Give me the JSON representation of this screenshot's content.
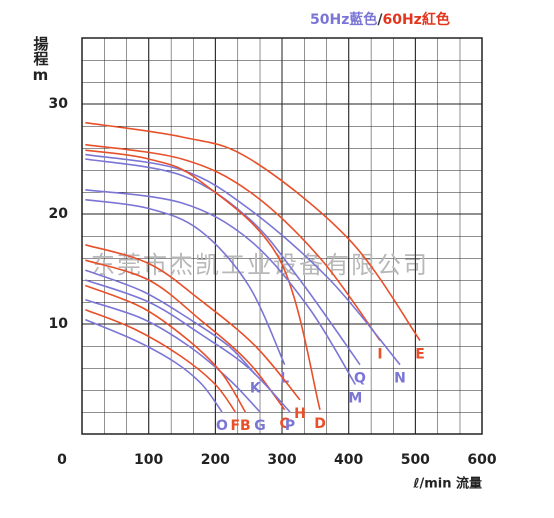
{
  "chart_data": {
    "type": "line",
    "legend_parts": [
      "50Hz藍色",
      "/",
      "60Hz紅色"
    ],
    "legend_colors": [
      "#7b76d6",
      "#333333",
      "#e2361e"
    ],
    "ylabel": "揚程m",
    "xlabel": "ℓ/min 流量",
    "watermark": "东莞市杰凯工业设备有限公司",
    "xlim": [
      0,
      600
    ],
    "ylim": [
      0,
      36
    ],
    "xticks": [
      0,
      100,
      200,
      300,
      400,
      500,
      600
    ],
    "yticks": [
      10,
      20,
      30
    ],
    "grid": true,
    "series": [
      {
        "name": "E",
        "color": "#e8502a",
        "x": [
          5,
          150,
          252,
          402,
          507
        ],
        "values": [
          28.3,
          27,
          25,
          17.6,
          8.5
        ]
      },
      {
        "name": "I",
        "color": "#e8502a",
        "x": [
          5,
          150,
          252,
          357,
          447
        ],
        "values": [
          26.3,
          25,
          22,
          16,
          8.5
        ]
      },
      {
        "name": "N",
        "color": "#7b76d6",
        "x": [
          5,
          150,
          252,
          372,
          477
        ],
        "values": [
          25.4,
          24,
          20.4,
          14,
          6.3
        ]
      },
      {
        "name": "Q",
        "color": "#7b76d6",
        "x": [
          5,
          150,
          252,
          327,
          417
        ],
        "values": [
          25,
          23.5,
          19.5,
          14,
          6.3
        ]
      },
      {
        "name": "D",
        "color": "#e8502a",
        "x": [
          5,
          100,
          177,
          297,
          357
        ],
        "values": [
          25.8,
          25,
          23,
          15.8,
          2.2
        ]
      },
      {
        "name": "M",
        "color": "#7b76d6",
        "x": [
          5,
          150,
          252,
          340,
          410
        ],
        "values": [
          22.2,
          21,
          17.6,
          11.5,
          4.5
        ]
      },
      {
        "name": "L",
        "color": "#7b76d6",
        "x": [
          5,
          100,
          177,
          250,
          304
        ],
        "values": [
          21.3,
          20.5,
          18.5,
          13.5,
          6.3
        ]
      },
      {
        "name": "H",
        "color": "#e8502a",
        "x": [
          5,
          100,
          177,
          260,
          327
        ],
        "values": [
          17.2,
          15.5,
          12.2,
          8,
          3.1
        ]
      },
      {
        "name": "C",
        "color": "#e8502a",
        "x": [
          5,
          100,
          177,
          250,
          304
        ],
        "values": [
          15.8,
          14,
          10.4,
          6.5,
          2.2
        ]
      },
      {
        "name": "K",
        "color": "#7b76d6",
        "x": [
          5,
          90,
          160,
          220,
          260
        ],
        "values": [
          14.9,
          13,
          10.5,
          8,
          5.4
        ]
      },
      {
        "name": "P",
        "color": "#7b76d6",
        "x": [
          5,
          100,
          180,
          250,
          312
        ],
        "values": [
          14,
          12,
          9,
          6,
          2
        ]
      },
      {
        "name": "G",
        "color": "#7b76d6",
        "x": [
          5,
          90,
          160,
          220,
          267
        ],
        "values": [
          12.2,
          10.5,
          8,
          5,
          2
        ]
      },
      {
        "name": "B",
        "color": "#e8502a",
        "x": [
          5,
          90,
          160,
          210,
          245
        ],
        "values": [
          13.5,
          11.5,
          8.5,
          5.5,
          2
        ]
      },
      {
        "name": "F",
        "color": "#e8502a",
        "x": [
          5,
          80,
          150,
          200,
          230
        ],
        "values": [
          11.3,
          9.5,
          7,
          4.5,
          2
        ]
      },
      {
        "name": "O",
        "color": "#7b76d6",
        "x": [
          5,
          80,
          140,
          180,
          210
        ],
        "values": [
          10.4,
          8.5,
          6.5,
          4.5,
          2
        ]
      }
    ]
  }
}
